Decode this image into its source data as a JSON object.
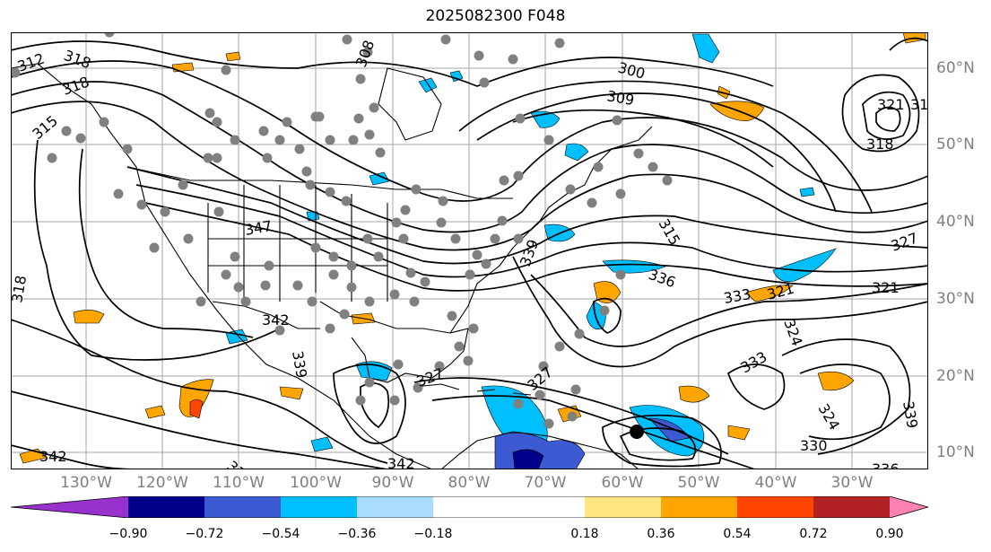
{
  "title": "2025082300 F048",
  "lon_labels": [
    "130°W",
    "120°W",
    "110°W",
    "100°W",
    "90°W",
    "80°W",
    "70°W",
    "60°W",
    "50°W",
    "40°W",
    "30°W"
  ],
  "lat_labels": [
    "60°N",
    "50°N",
    "40°N",
    "30°N",
    "20°N",
    "10°N"
  ],
  "colorbar": {
    "ticks": [
      "−0.90",
      "−0.72",
      "−0.54",
      "−0.36",
      "−0.18",
      "0.18",
      "0.36",
      "0.54",
      "0.72",
      "0.90"
    ],
    "colors": [
      "#9932cc",
      "#00008b",
      "#3c5ad2",
      "#00bfff",
      "#aadcff",
      "#ffffff",
      "#ffe680",
      "#ffa500",
      "#ff4500",
      "#b22222",
      "#ff82b4"
    ]
  },
  "contour_labels": [
    {
      "text": "312"
    },
    {
      "text": "318"
    },
    {
      "text": "308"
    },
    {
      "text": "300"
    },
    {
      "text": "309"
    },
    {
      "text": "315"
    },
    {
      "text": "321"
    },
    {
      "text": "318"
    },
    {
      "text": "318"
    },
    {
      "text": "315"
    },
    {
      "text": "347"
    },
    {
      "text": "339"
    },
    {
      "text": "336"
    },
    {
      "text": "333"
    },
    {
      "text": "321"
    },
    {
      "text": "327"
    },
    {
      "text": "321"
    },
    {
      "text": "318"
    },
    {
      "text": "342"
    },
    {
      "text": "324"
    },
    {
      "text": "339"
    },
    {
      "text": "327"
    },
    {
      "text": "333"
    },
    {
      "text": "324"
    },
    {
      "text": "339"
    },
    {
      "text": "330"
    },
    {
      "text": "342"
    },
    {
      "text": "342"
    },
    {
      "text": "336"
    },
    {
      "text": "33"
    },
    {
      "text": "327"
    },
    {
      "text": "31"
    }
  ]
}
